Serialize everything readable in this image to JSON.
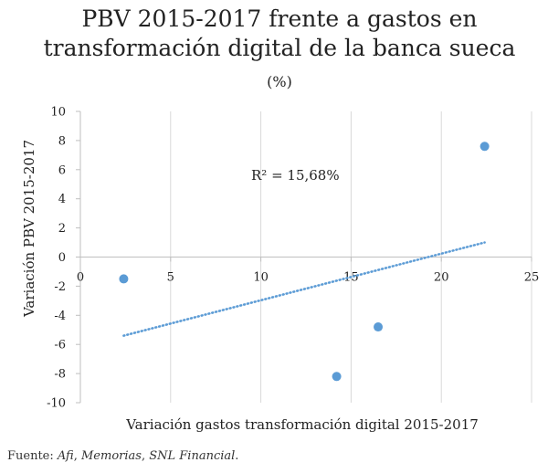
{
  "chart_data": {
    "type": "scatter",
    "title_lines": [
      "PBV 2015-2017 frente a gastos en",
      "transformación digital de la banca sueca"
    ],
    "subtitle": "(%)",
    "xlabel": "Variación gastos transformación digital 2015-2017",
    "ylabel": "Variación PBV 2015-2017",
    "xlim": [
      0,
      25
    ],
    "ylim": [
      -10,
      10
    ],
    "x_ticks": [
      0,
      5,
      10,
      15,
      20,
      25
    ],
    "y_ticks": [
      -10,
      -8,
      -6,
      -4,
      -2,
      0,
      2,
      4,
      6,
      8,
      10
    ],
    "x_tick_labels": [
      "0",
      "5",
      "10",
      "15",
      "20",
      "25"
    ],
    "y_tick_labels": [
      "-10",
      "-8",
      "-6",
      "-4",
      "-2",
      "0",
      "2",
      "4",
      "6",
      "8",
      "10"
    ],
    "grid": "vertical",
    "series": [
      {
        "points": [
          {
            "x": 2.4,
            "y": -1.5
          },
          {
            "x": 14.2,
            "y": -8.2
          },
          {
            "x": 16.5,
            "y": -4.8
          },
          {
            "x": 22.4,
            "y": 7.6
          }
        ],
        "color": "#5b9bd5"
      }
    ],
    "trendline": {
      "type": "linear",
      "from": {
        "x": 2.4,
        "y": -5.4
      },
      "to": {
        "x": 22.4,
        "y": 1.0
      },
      "color": "#5b9bd5",
      "style": "dotted"
    },
    "annotation": "R² = 15,68%"
  },
  "source": {
    "prefix": "Fuente: ",
    "items": [
      "Afi",
      ", ",
      "Memorias",
      ", ",
      "SNL Financial",
      "."
    ]
  }
}
